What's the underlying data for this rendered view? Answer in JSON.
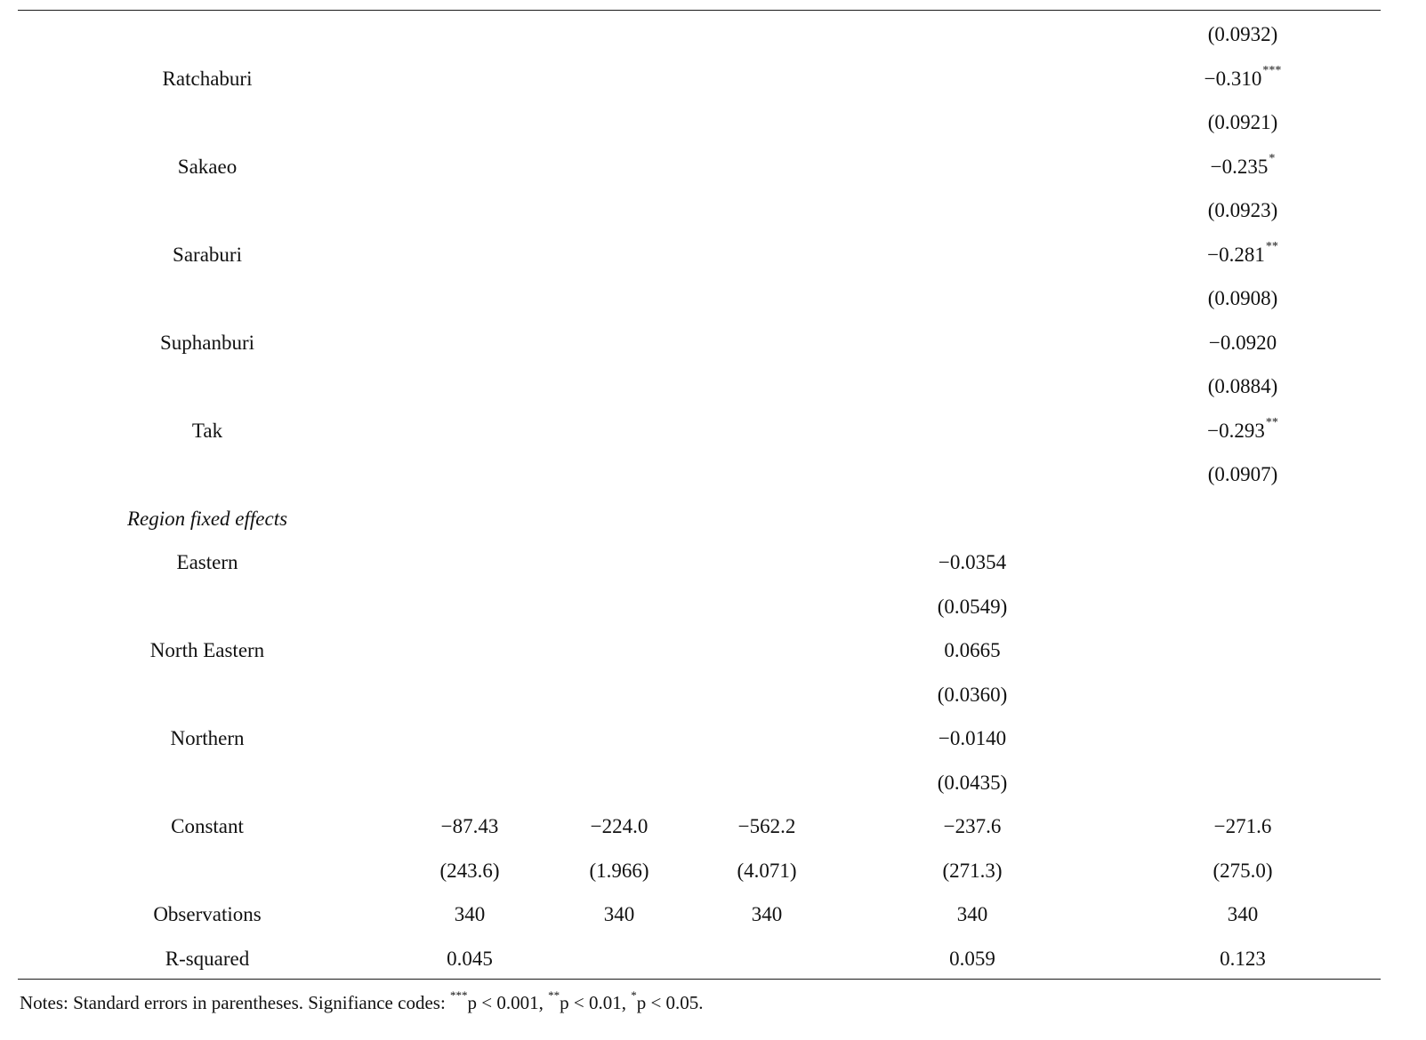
{
  "table": {
    "rows": [
      {
        "label": "",
        "c1": "",
        "c2": "",
        "c3": "",
        "c4": "",
        "c5": "(0.0932)"
      },
      {
        "label": "Ratchaburi",
        "c1": "",
        "c2": "",
        "c3": "",
        "c4": "",
        "c5": "−0.310",
        "c5_stars": "***"
      },
      {
        "label": "",
        "c1": "",
        "c2": "",
        "c3": "",
        "c4": "",
        "c5": "(0.0921)"
      },
      {
        "label": "Sakaeo",
        "c1": "",
        "c2": "",
        "c3": "",
        "c4": "",
        "c5": "−0.235",
        "c5_stars": "*"
      },
      {
        "label": "",
        "c1": "",
        "c2": "",
        "c3": "",
        "c4": "",
        "c5": "(0.0923)"
      },
      {
        "label": "Saraburi",
        "c1": "",
        "c2": "",
        "c3": "",
        "c4": "",
        "c5": "−0.281",
        "c5_stars": "**"
      },
      {
        "label": "",
        "c1": "",
        "c2": "",
        "c3": "",
        "c4": "",
        "c5": "(0.0908)"
      },
      {
        "label": "Suphanburi",
        "c1": "",
        "c2": "",
        "c3": "",
        "c4": "",
        "c5": "−0.0920"
      },
      {
        "label": "",
        "c1": "",
        "c2": "",
        "c3": "",
        "c4": "",
        "c5": "(0.0884)"
      },
      {
        "label": "Tak",
        "c1": "",
        "c2": "",
        "c3": "",
        "c4": "",
        "c5": "−0.293",
        "c5_stars": "**"
      },
      {
        "label": "",
        "c1": "",
        "c2": "",
        "c3": "",
        "c4": "",
        "c5": "(0.0907)"
      },
      {
        "label": "Region fixed effects",
        "section": true
      },
      {
        "label": "Eastern",
        "c1": "",
        "c2": "",
        "c3": "",
        "c4": "−0.0354",
        "c5": ""
      },
      {
        "label": "",
        "c1": "",
        "c2": "",
        "c3": "",
        "c4": "(0.0549)",
        "c5": ""
      },
      {
        "label": "North Eastern",
        "c1": "",
        "c2": "",
        "c3": "",
        "c4": "0.0665",
        "c5": ""
      },
      {
        "label": "",
        "c1": "",
        "c2": "",
        "c3": "",
        "c4": "(0.0360)",
        "c5": ""
      },
      {
        "label": "Northern",
        "c1": "",
        "c2": "",
        "c3": "",
        "c4": "−0.0140",
        "c5": ""
      },
      {
        "label": "",
        "c1": "",
        "c2": "",
        "c3": "",
        "c4": "(0.0435)",
        "c5": ""
      },
      {
        "label": "Constant",
        "c1": "−87.43",
        "c2": "−224.0",
        "c3": "−562.2",
        "c4": "−237.6",
        "c5": "−271.6"
      },
      {
        "label": "",
        "c1": "(243.6)",
        "c2": "(1.966)",
        "c3": "(4.071)",
        "c4": "(271.3)",
        "c5": "(275.0)"
      },
      {
        "label": "Observations",
        "c1": "340",
        "c2": "340",
        "c3": "340",
        "c4": "340",
        "c5": "340"
      },
      {
        "label": "R-squared",
        "c1": "0.045",
        "c2": "",
        "c3": "",
        "c4": "0.059",
        "c5": "0.123"
      }
    ]
  },
  "notes": {
    "prefix": "Notes: Standard errors in parentheses. Signifiance codes: ",
    "star3": "***",
    "p1": "p < 0.001, ",
    "star2": "**",
    "p2": "p < 0.01, ",
    "star1": "*",
    "p3": "p < 0.05."
  }
}
